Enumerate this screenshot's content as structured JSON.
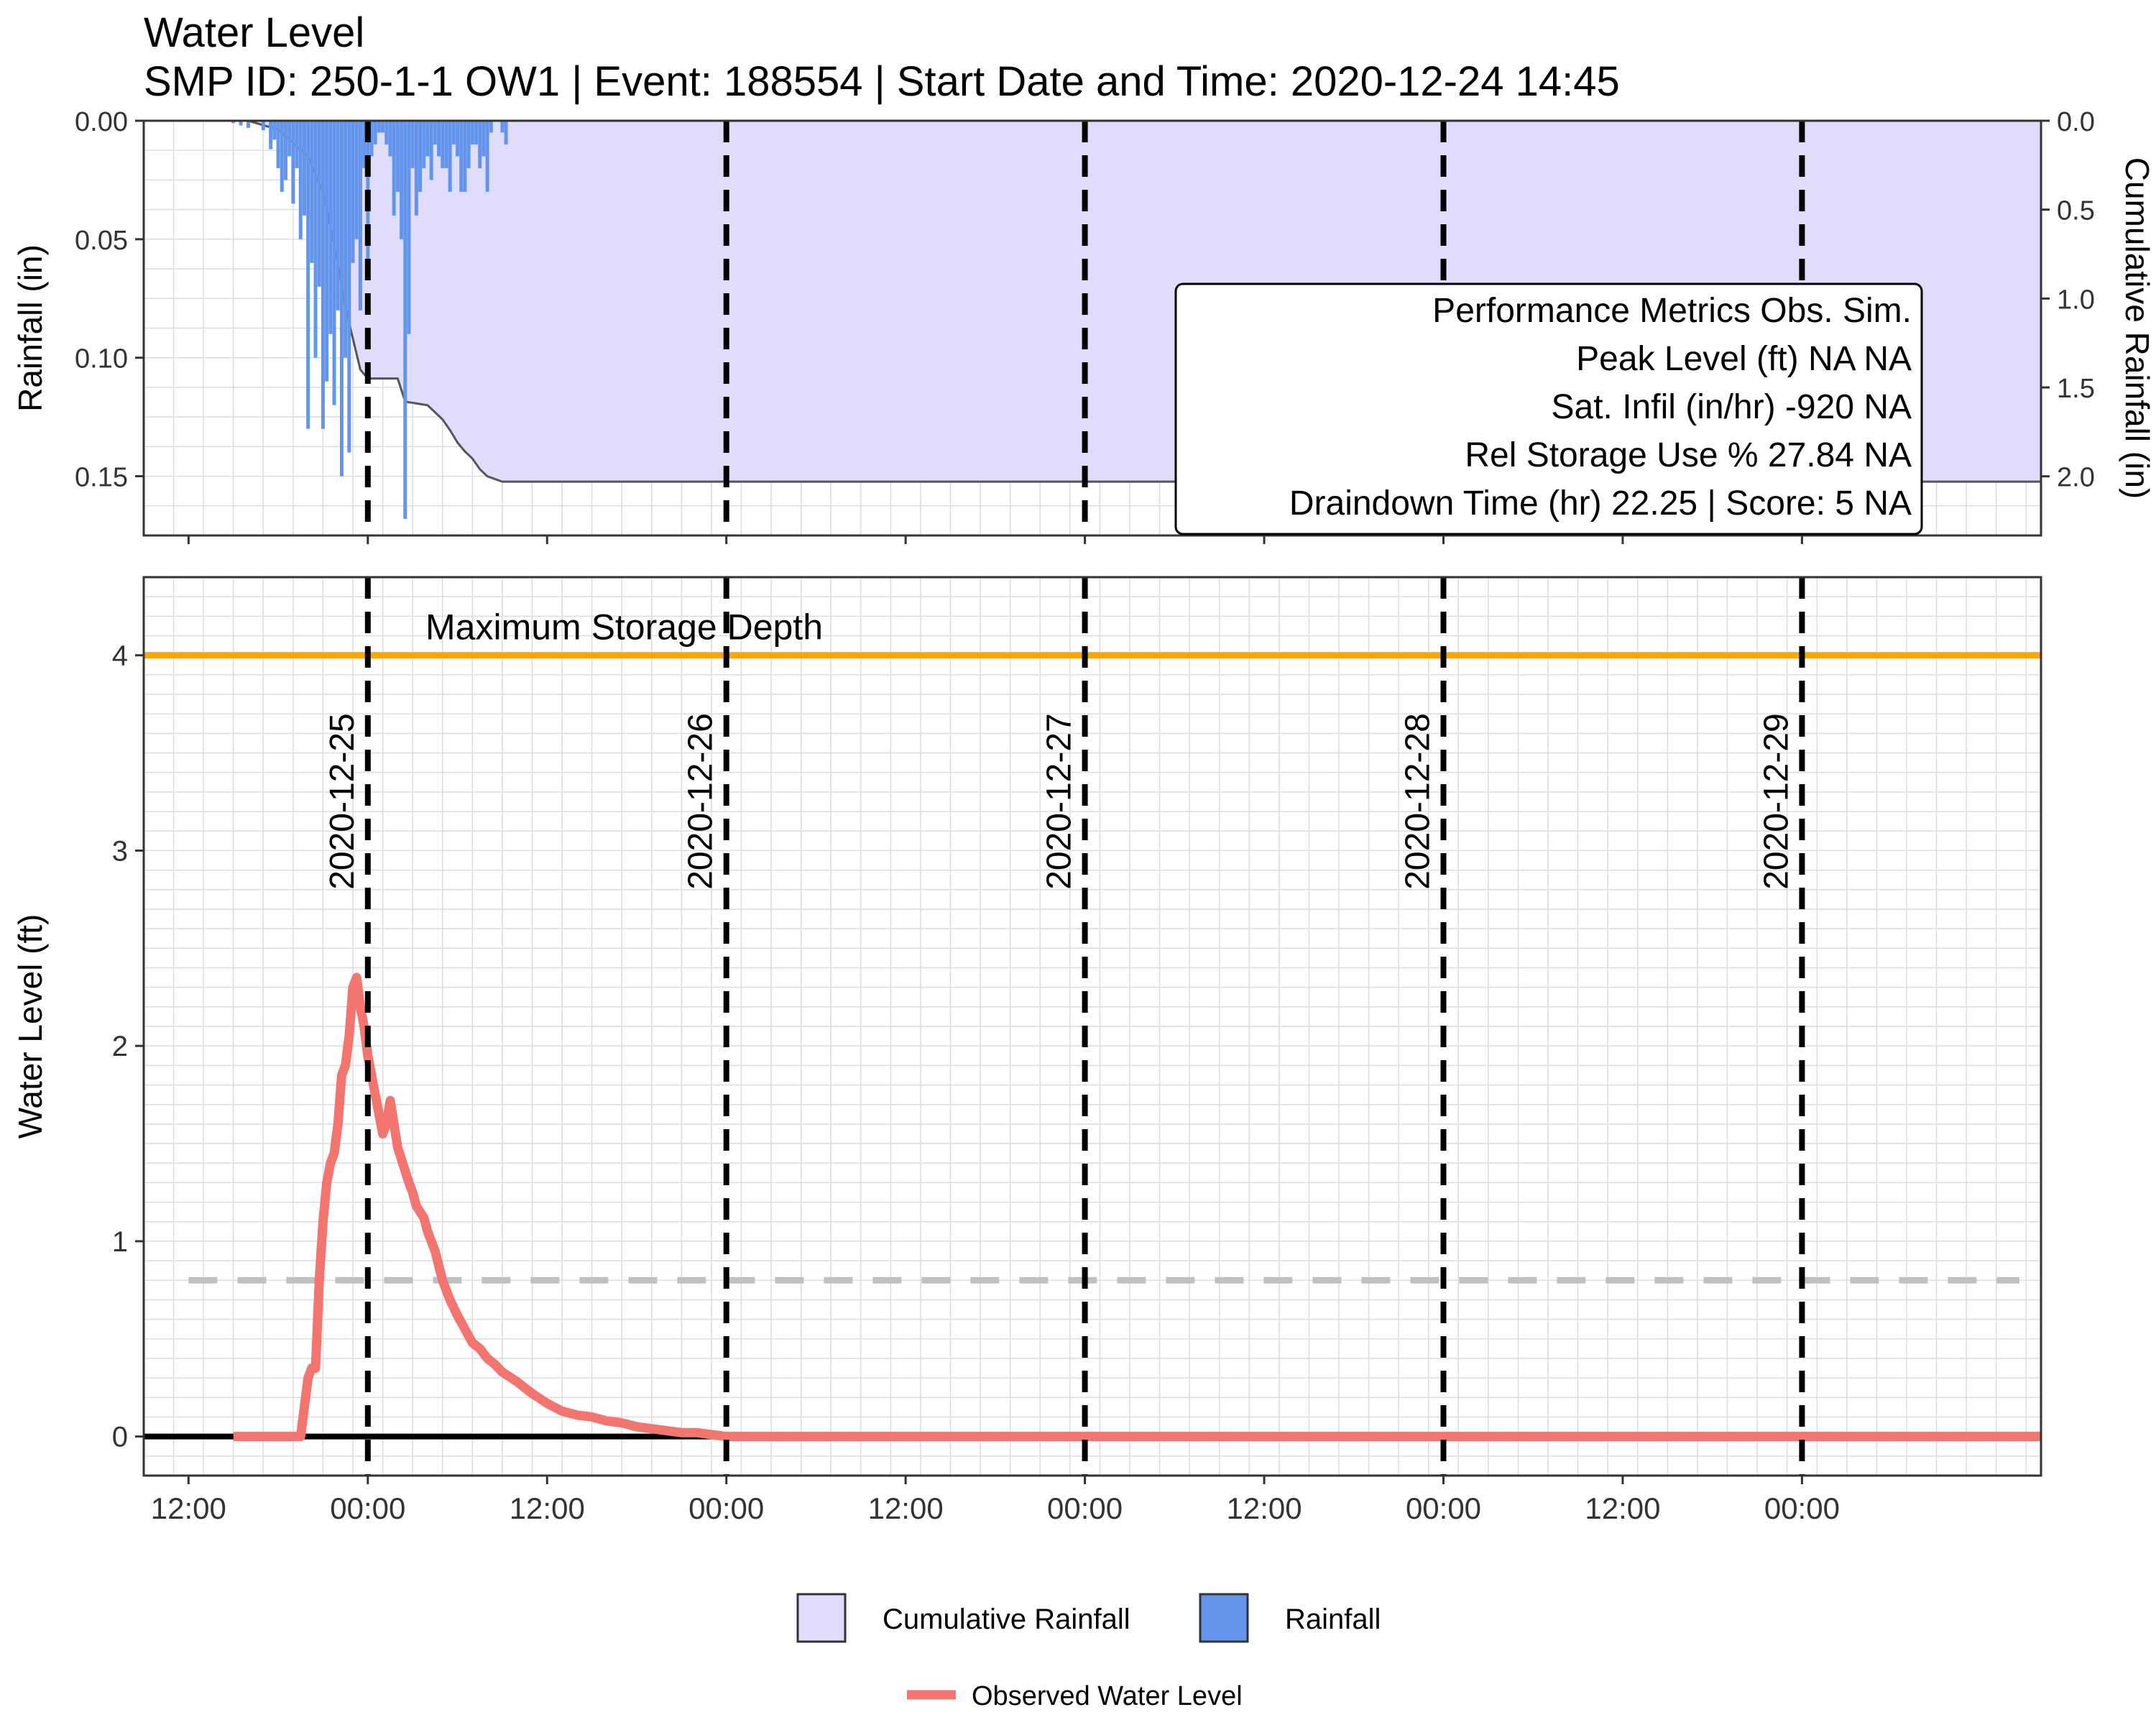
{
  "title": "Water Level",
  "subtitle": "SMP ID: 250-1-1 OW1 | Event: 188554 | Start Date and Time: 2020-12-24 14:45",
  "colors": {
    "rainfall": "#6495ED",
    "cumulative_fill": "#E0DCFB",
    "cumulative_line": "#555555",
    "water_level": "#F27570",
    "max_storage": "#FFA500",
    "orifice": "#C0C0C0",
    "grid": "#DCDCDC",
    "day_marker": "#000000"
  },
  "chart_data": [
    {
      "id": "rainfall-panel",
      "type": "bar",
      "ylabel": "Rainfall (in)",
      "y2label": "Cumulative Rainfall (in)",
      "ylim": [
        0.175,
        0
      ],
      "y_reversed": true,
      "yticks": [
        "0.00",
        "0.05",
        "0.10",
        "0.15"
      ],
      "y2ticks": [
        "0.0",
        "0.5",
        "1.0",
        "1.5",
        "2.0"
      ],
      "y2_per_y": 13.33,
      "x_range_hours": [
        -15,
        112
      ],
      "x_origin": "2020-12-25 00:00",
      "rainfall": {
        "name": "Rainfall",
        "hours": [
          -9.0,
          -8.5,
          -8.0,
          -7.0,
          -6.5,
          -6.25,
          -6.0,
          -5.75,
          -5.5,
          -5.25,
          -5.0,
          -4.75,
          -4.5,
          -4.25,
          -4.0,
          -3.75,
          -3.5,
          -3.25,
          -3.0,
          -2.75,
          -2.5,
          -2.25,
          -2.0,
          -1.75,
          -1.5,
          -1.25,
          -1.0,
          -0.75,
          -0.5,
          -0.25,
          0.0,
          0.25,
          0.5,
          0.75,
          1.0,
          1.25,
          1.5,
          1.75,
          2.0,
          2.25,
          2.5,
          2.75,
          3.0,
          3.25,
          3.5,
          3.75,
          4.0,
          4.25,
          4.5,
          4.75,
          5.0,
          5.25,
          5.5,
          5.75,
          6.0,
          6.25,
          6.5,
          6.75,
          7.0,
          7.25,
          7.5,
          7.75,
          8.0,
          8.25,
          9.0,
          9.25
        ],
        "values": [
          0.001,
          0.002,
          0.003,
          0.004,
          0.012,
          0.008,
          0.02,
          0.03,
          0.025,
          0.015,
          0.035,
          0.02,
          0.05,
          0.04,
          0.13,
          0.06,
          0.1,
          0.07,
          0.13,
          0.11,
          0.09,
          0.12,
          0.08,
          0.15,
          0.1,
          0.14,
          0.06,
          0.05,
          0.08,
          0.02,
          0.06,
          0.015,
          0.01,
          0.005,
          0.005,
          0.01,
          0.015,
          0.04,
          0.03,
          0.05,
          0.168,
          0.09,
          0.02,
          0.04,
          0.03,
          0.02,
          0.015,
          0.025,
          0.01,
          0.015,
          0.02,
          0.02,
          0.03,
          0.01,
          0.015,
          0.03,
          0.03,
          0.02,
          0.01,
          0.01,
          0.02,
          0.015,
          0.03,
          0.005,
          0.005,
          0.01
        ]
      },
      "cumulative": {
        "name": "Cumulative Rainfall",
        "hours": [
          -15,
          -8,
          -6,
          -4,
          -3,
          -2,
          -1.5,
          -0.5,
          0,
          0.5,
          1,
          2,
          2.5,
          4,
          5,
          5.5,
          6,
          6.5,
          7,
          7.5,
          8,
          9,
          10,
          11,
          12,
          112
        ],
        "values": [
          0,
          0,
          0.05,
          0.2,
          0.4,
          0.8,
          1.05,
          1.4,
          1.45,
          1.45,
          1.45,
          1.45,
          1.58,
          1.6,
          1.68,
          1.74,
          1.81,
          1.86,
          1.9,
          1.96,
          2.0,
          2.03,
          2.03,
          2.03,
          2.03,
          2.03
        ]
      }
    },
    {
      "id": "water-level-panel",
      "type": "line",
      "ylabel": "Water Level (ft)",
      "ylim": [
        -0.2,
        4.4
      ],
      "yticks": [
        "0",
        "1",
        "2",
        "3",
        "4"
      ],
      "x_range_hours": [
        -15,
        112
      ],
      "x_origin": "2020-12-25 00:00",
      "xtick_labels": [
        "12:00",
        "00:00",
        "12:00",
        "00:00",
        "12:00",
        "00:00",
        "12:00",
        "00:00",
        "12:00",
        "00:00"
      ],
      "xtick_hours": [
        -12,
        0,
        12,
        24,
        36,
        48,
        60,
        72,
        84,
        96
      ],
      "day_markers": [
        {
          "hour": 0,
          "label": "2020-12-25"
        },
        {
          "hour": 24,
          "label": "2020-12-26"
        },
        {
          "hour": 48,
          "label": "2020-12-27"
        },
        {
          "hour": 72,
          "label": "2020-12-28"
        },
        {
          "hour": 96,
          "label": "2020-12-29"
        }
      ],
      "max_storage_depth": 4.0,
      "max_storage_label": "Maximum Storage Depth",
      "orifice_height": 0.8,
      "series": [
        {
          "name": "Observed Water Level",
          "x": [
            -9,
            -4.5,
            -4.0,
            -3.75,
            -3.5,
            -3.25,
            -3.0,
            -2.75,
            -2.5,
            -2.25,
            -2.0,
            -1.75,
            -1.5,
            -1.25,
            -1.0,
            -0.75,
            -0.5,
            -0.25,
            0.0,
            0.25,
            0.5,
            0.75,
            1.0,
            1.25,
            1.5,
            1.75,
            2.0,
            2.25,
            2.5,
            2.75,
            3.0,
            3.25,
            3.5,
            3.75,
            4.0,
            4.5,
            5.0,
            5.5,
            6.0,
            6.5,
            7.0,
            7.5,
            8.0,
            8.5,
            9.0,
            10,
            11,
            12,
            13,
            14,
            15,
            16,
            17,
            18,
            19,
            20,
            21,
            22,
            23,
            24,
            112
          ],
          "values": [
            0,
            0,
            0.3,
            0.35,
            0.35,
            0.8,
            1.1,
            1.3,
            1.4,
            1.45,
            1.6,
            1.85,
            1.9,
            2.05,
            2.3,
            2.35,
            2.2,
            2.1,
            1.95,
            1.85,
            1.75,
            1.65,
            1.55,
            1.6,
            1.72,
            1.6,
            1.48,
            1.42,
            1.36,
            1.3,
            1.25,
            1.18,
            1.15,
            1.12,
            1.05,
            0.95,
            0.8,
            0.7,
            0.62,
            0.55,
            0.48,
            0.45,
            0.4,
            0.37,
            0.33,
            0.28,
            0.22,
            0.17,
            0.13,
            0.11,
            0.1,
            0.08,
            0.07,
            0.05,
            0.04,
            0.03,
            0.02,
            0.02,
            0.01,
            0,
            0
          ]
        }
      ]
    }
  ],
  "performance_metrics": {
    "header": "Performance Metrics Obs. Sim.",
    "rows": [
      "Peak Level (ft) NA NA",
      "Sat. Infil (in/hr) -920 NA",
      "Rel Storage Use % 27.84 NA",
      "Draindown Time (hr) 22.25 | Score: 5 NA"
    ]
  },
  "legend": {
    "items": [
      {
        "label": "Cumulative Rainfall",
        "kind": "fill"
      },
      {
        "label": "Rainfall",
        "kind": "fill"
      },
      {
        "label": "Observed Water Level",
        "kind": "line"
      }
    ]
  }
}
